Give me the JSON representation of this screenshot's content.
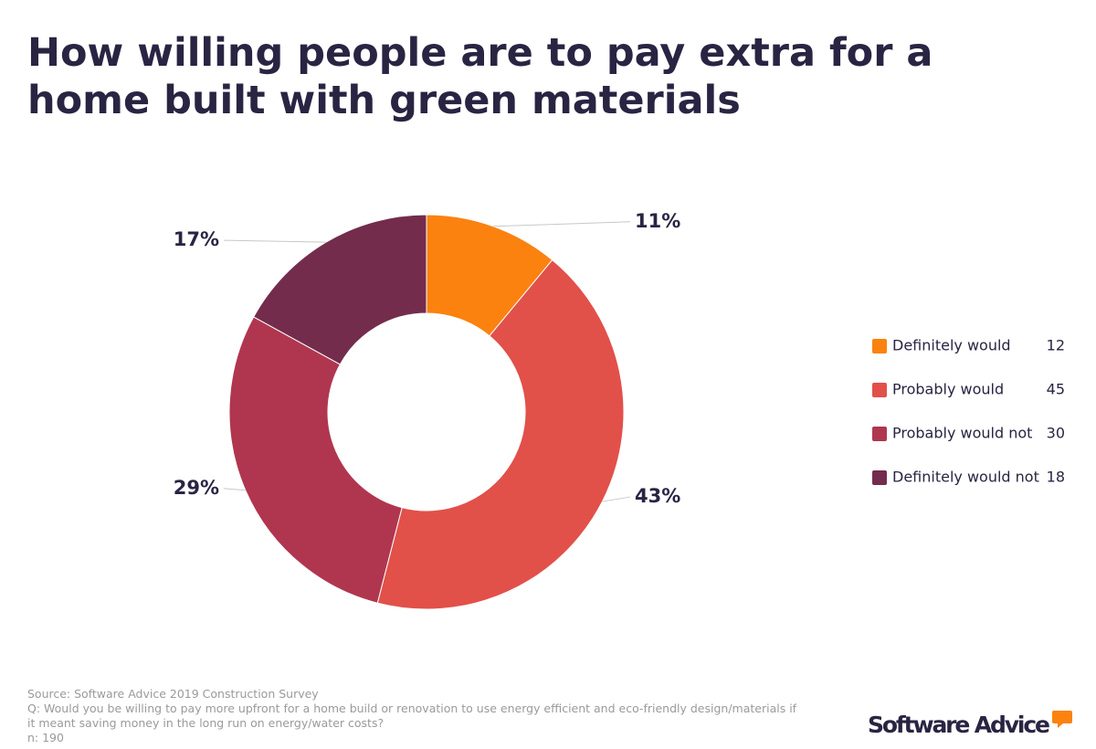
{
  "chart_data": {
    "type": "donut",
    "title_lines": [
      "How willing people are to pay extra for a",
      "home built with green materials"
    ],
    "categories": [
      "Definitely would",
      "Probably would",
      "Probably would not",
      "Definitely would not"
    ],
    "values": [
      11,
      43,
      29,
      17
    ],
    "value_labels": [
      "11%",
      "43%",
      "29%",
      "17%"
    ],
    "counts": [
      12,
      45,
      30,
      18
    ],
    "colors": [
      "#fb820f",
      "#e2504a",
      "#b0364f",
      "#742c4d"
    ],
    "footer": [
      "Source: Software Advice 2019 Construction Survey",
      "Q: Would you be willing to pay more upfront for a home build or renovation to use energy efficient and eco-friendly design/materials if",
      "it meant saving money in the long run on energy/water costs?",
      "n: 190"
    ],
    "brand": "Software Advice"
  }
}
